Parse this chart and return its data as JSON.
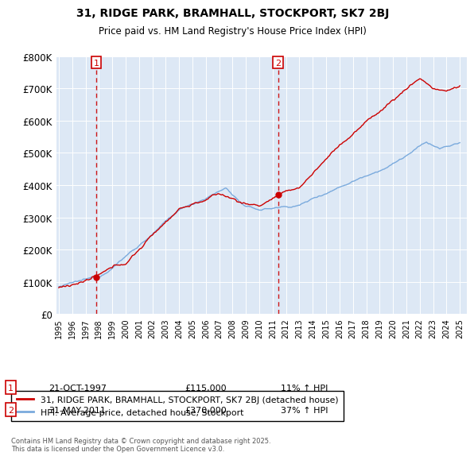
{
  "title": "31, RIDGE PARK, BRAMHALL, STOCKPORT, SK7 2BJ",
  "subtitle": "Price paid vs. HM Land Registry's House Price Index (HPI)",
  "legend_line1": "31, RIDGE PARK, BRAMHALL, STOCKPORT, SK7 2BJ (detached house)",
  "legend_line2": "HPI: Average price, detached house, Stockport",
  "annotation1_label": "1",
  "annotation1_date": "21-OCT-1997",
  "annotation1_price": "£115,000",
  "annotation1_hpi": "11% ↑ HPI",
  "annotation2_label": "2",
  "annotation2_date": "31-MAY-2011",
  "annotation2_price": "£370,000",
  "annotation2_hpi": "37% ↑ HPI",
  "footer": "Contains HM Land Registry data © Crown copyright and database right 2025.\nThis data is licensed under the Open Government Licence v3.0.",
  "house_color": "#cc0000",
  "hpi_color": "#7aaadd",
  "sale1_x": 1997.8,
  "sale1_y": 115000,
  "sale2_x": 2011.4,
  "sale2_y": 370000,
  "ylim": [
    0,
    800000
  ],
  "xlim": [
    1994.8,
    2025.5
  ],
  "yticks": [
    0,
    100000,
    200000,
    300000,
    400000,
    500000,
    600000,
    700000,
    800000
  ],
  "ytick_labels": [
    "£0",
    "£100K",
    "£200K",
    "£300K",
    "£400K",
    "£500K",
    "£600K",
    "£700K",
    "£800K"
  ],
  "background_color": "#dde8f5",
  "plot_bg": "#dde8f5"
}
